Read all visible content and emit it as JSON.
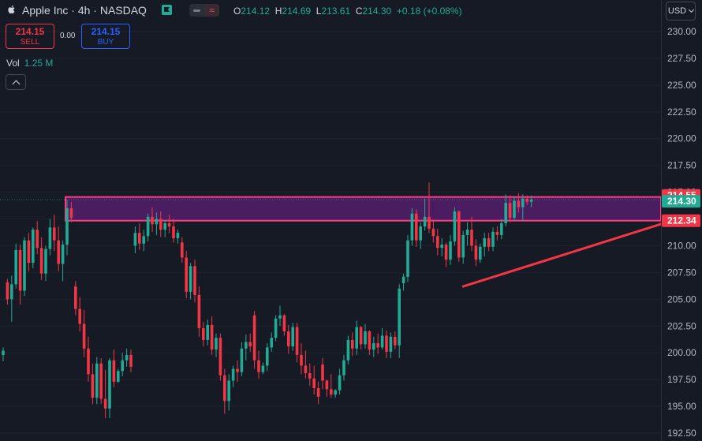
{
  "header": {
    "symbol": "Apple Inc · 4h · NASDAQ",
    "ohlc": {
      "o_label": "O",
      "o": "214.12",
      "h_label": "H",
      "h": "214.69",
      "l_label": "L",
      "l": "213.61",
      "c_label": "C",
      "c": "214.30",
      "change": "+0.18 (+0.08%)"
    },
    "sell_price": "214.15",
    "sell_label": "SELL",
    "buy_price": "214.15",
    "buy_label": "BUY",
    "spread": "0.00",
    "vol_label": "Vol",
    "vol_value": "1.25 M",
    "currency": "USD"
  },
  "colors": {
    "background": "#161a25",
    "up": "#22ab94",
    "down": "#f23645",
    "zone_fill": "#5c1f75",
    "zone_border": "#ff3a7f",
    "trendline": "#f23645"
  },
  "chart_data": {
    "type": "candlestick",
    "ylim": [
      192.5,
      231.0
    ],
    "yticks": [
      "230.00",
      "227.50",
      "225.00",
      "222.50",
      "220.00",
      "217.50",
      "215.00",
      "212.50",
      "210.00",
      "207.50",
      "205.00",
      "202.50",
      "200.00",
      "197.50",
      "195.00",
      "192.50"
    ],
    "price_labels": [
      {
        "value": 214.55,
        "text": "214.55",
        "color": "#f23645"
      },
      {
        "value": 214.3,
        "text": "214.30",
        "color": "#22ab94"
      },
      {
        "value": 212.34,
        "text": "212.34",
        "color": "#f23645"
      }
    ],
    "zone": {
      "top": 214.55,
      "bottom": 212.34,
      "x_start_index": 15
    },
    "trendline": {
      "from": {
        "index": 108,
        "value": 206.2
      },
      "to": {
        "index": 157,
        "value": 212.34
      }
    },
    "candles": [
      [
        199.8,
        200.5,
        199.2,
        200.2
      ],
      [
        206.6,
        206.9,
        204.5,
        205.0
      ],
      [
        205.0,
        207.2,
        202.9,
        206.4
      ],
      [
        206.4,
        210.2,
        206.0,
        209.6
      ],
      [
        209.6,
        210.1,
        204.5,
        205.8
      ],
      [
        205.8,
        210.8,
        205.3,
        210.5
      ],
      [
        210.5,
        211.2,
        207.6,
        208.4
      ],
      [
        208.4,
        211.7,
        207.9,
        211.5
      ],
      [
        211.5,
        212.3,
        209.2,
        209.8
      ],
      [
        209.8,
        210.8,
        206.8,
        207.4
      ],
      [
        207.4,
        210.0,
        206.7,
        209.7
      ],
      [
        209.7,
        212.5,
        209.1,
        211.7
      ],
      [
        211.7,
        212.9,
        209.5,
        210.5
      ],
      [
        210.5,
        211.8,
        207.6,
        208.3
      ],
      [
        208.3,
        210.5,
        206.7,
        210.1
      ],
      [
        210.1,
        214.3,
        209.1,
        213.5
      ],
      [
        213.5,
        214.1,
        212.2,
        212.6
      ],
      [
        206.2,
        206.7,
        203.5,
        204.1
      ],
      [
        204.1,
        205.2,
        202.0,
        202.7
      ],
      [
        202.7,
        204.0,
        199.6,
        200.4
      ],
      [
        200.4,
        201.5,
        197.3,
        198.0
      ],
      [
        198.0,
        199.0,
        195.2,
        195.8
      ],
      [
        195.8,
        199.6,
        195.2,
        199.0
      ],
      [
        199.0,
        199.5,
        195.2,
        195.7
      ],
      [
        195.7,
        198.4,
        193.9,
        194.8
      ],
      [
        194.8,
        199.5,
        193.9,
        199.3
      ],
      [
        199.3,
        200.3,
        196.8,
        197.3
      ],
      [
        197.3,
        198.5,
        197.2,
        198.3
      ],
      [
        198.3,
        200.0,
        197.8,
        199.3
      ],
      [
        199.3,
        200.4,
        198.7,
        199.8
      ],
      [
        199.8,
        200.3,
        198.2,
        198.7
      ],
      [
        210.0,
        211.8,
        209.3,
        211.2
      ],
      [
        211.2,
        212.1,
        209.6,
        210.2
      ],
      [
        210.2,
        211.5,
        209.5,
        210.9
      ],
      [
        210.9,
        213.0,
        210.4,
        212.7
      ],
      [
        212.7,
        213.6,
        211.3,
        212.0
      ],
      [
        212.0,
        213.1,
        211.0,
        212.5
      ],
      [
        212.5,
        213.2,
        210.8,
        211.5
      ],
      [
        211.5,
        212.4,
        210.8,
        212.1
      ],
      [
        212.1,
        212.9,
        211.2,
        211.8
      ],
      [
        211.8,
        212.5,
        210.3,
        210.7
      ],
      [
        210.7,
        211.5,
        210.2,
        211.2
      ],
      [
        210.3,
        210.8,
        208.4,
        208.9
      ],
      [
        208.9,
        209.5,
        205.1,
        205.7
      ],
      [
        205.7,
        208.4,
        205.0,
        208.1
      ],
      [
        208.1,
        208.7,
        204.7,
        205.4
      ],
      [
        205.4,
        206.2,
        201.5,
        202.3
      ],
      [
        202.3,
        202.9,
        200.6,
        201.2
      ],
      [
        201.2,
        203.1,
        200.7,
        202.6
      ],
      [
        202.6,
        203.4,
        199.8,
        200.3
      ],
      [
        200.3,
        201.8,
        199.6,
        201.4
      ],
      [
        201.4,
        201.8,
        197.4,
        197.9
      ],
      [
        197.9,
        198.5,
        194.3,
        195.5
      ],
      [
        195.5,
        198.0,
        194.6,
        197.4
      ],
      [
        197.4,
        198.8,
        196.8,
        198.5
      ],
      [
        198.5,
        199.3,
        197.3,
        198.2
      ],
      [
        198.2,
        201.0,
        197.8,
        200.4
      ],
      [
        200.4,
        201.7,
        199.3,
        201.0
      ],
      [
        201.0,
        201.8,
        200.1,
        200.6
      ],
      [
        203.5,
        203.9,
        198.5,
        199.3
      ],
      [
        199.3,
        200.2,
        197.6,
        198.2
      ],
      [
        198.2,
        199.1,
        198.0,
        198.8
      ],
      [
        198.8,
        200.9,
        198.3,
        200.5
      ],
      [
        200.5,
        201.9,
        200.1,
        201.4
      ],
      [
        201.4,
        203.5,
        201.1,
        203.2
      ],
      [
        203.2,
        204.4,
        202.5,
        203.5
      ],
      [
        203.5,
        203.6,
        201.6,
        202.0
      ],
      [
        202.0,
        202.6,
        199.9,
        200.6
      ],
      [
        200.6,
        202.8,
        200.2,
        202.4
      ],
      [
        202.4,
        202.8,
        199.1,
        199.8
      ],
      [
        199.8,
        200.9,
        198.0,
        198.8
      ],
      [
        198.8,
        200.2,
        197.6,
        198.1
      ],
      [
        198.1,
        199.0,
        196.9,
        197.6
      ],
      [
        197.6,
        198.8,
        196.1,
        196.7
      ],
      [
        196.7,
        197.3,
        195.2,
        195.9
      ],
      [
        198.9,
        199.5,
        196.6,
        197.4
      ],
      [
        197.4,
        197.5,
        195.9,
        196.6
      ],
      [
        196.6,
        198.0,
        195.8,
        196.1
      ],
      [
        196.1,
        196.6,
        195.8,
        196.5
      ],
      [
        196.5,
        198.5,
        196.1,
        197.9
      ],
      [
        197.9,
        199.8,
        197.4,
        199.3
      ],
      [
        199.3,
        201.6,
        198.9,
        201.2
      ],
      [
        201.2,
        201.9,
        199.7,
        200.4
      ],
      [
        200.4,
        203.0,
        199.8,
        202.4
      ],
      [
        202.4,
        202.5,
        200.3,
        200.8
      ],
      [
        200.8,
        202.7,
        200.4,
        202.0
      ],
      [
        202.0,
        202.1,
        199.8,
        200.3
      ],
      [
        200.3,
        201.5,
        199.6,
        200.9
      ],
      [
        200.9,
        201.8,
        199.9,
        200.5
      ],
      [
        200.5,
        202.3,
        200.3,
        201.6
      ],
      [
        201.6,
        202.1,
        199.5,
        200.1
      ],
      [
        200.1,
        201.9,
        199.5,
        201.5
      ],
      [
        201.5,
        202.0,
        200.3,
        200.7
      ],
      [
        200.7,
        206.4,
        199.5,
        206.0
      ],
      [
        206.5,
        207.4,
        205.8,
        207.1
      ],
      [
        207.1,
        211.0,
        206.6,
        210.5
      ],
      [
        210.5,
        213.5,
        210.0,
        213.0
      ],
      [
        213.0,
        213.4,
        209.9,
        210.5
      ],
      [
        210.5,
        212.2,
        209.7,
        211.8
      ],
      [
        211.8,
        214.4,
        211.4,
        212.7
      ],
      [
        212.7,
        215.9,
        211.2,
        211.6
      ],
      [
        211.6,
        212.3,
        210.3,
        210.9
      ],
      [
        210.9,
        211.6,
        209.1,
        209.8
      ],
      [
        209.8,
        210.7,
        209.0,
        210.1
      ],
      [
        210.1,
        210.3,
        208.0,
        208.7
      ],
      [
        208.7,
        211.0,
        208.2,
        210.4
      ],
      [
        210.4,
        213.6,
        210.0,
        213.2
      ],
      [
        213.2,
        213.3,
        208.5,
        208.9
      ],
      [
        208.9,
        211.4,
        208.3,
        211.0
      ],
      [
        211.0,
        212.2,
        210.0,
        211.5
      ],
      [
        211.5,
        212.7,
        209.5,
        210.0
      ],
      [
        210.0,
        210.6,
        208.1,
        208.7
      ],
      [
        208.7,
        210.2,
        208.4,
        209.9
      ],
      [
        209.9,
        211.2,
        209.0,
        210.7
      ],
      [
        210.7,
        211.2,
        209.5,
        209.9
      ],
      [
        209.9,
        211.7,
        209.5,
        211.3
      ],
      [
        211.3,
        211.8,
        210.5,
        211.0
      ],
      [
        211.0,
        212.5,
        210.6,
        212.1
      ],
      [
        212.1,
        214.8,
        211.8,
        214.0
      ],
      [
        214.0,
        214.7,
        212.2,
        212.6
      ],
      [
        212.6,
        214.6,
        212.4,
        214.2
      ],
      [
        214.2,
        214.9,
        213.1,
        213.6
      ],
      [
        213.6,
        214.8,
        212.3,
        214.4
      ],
      [
        214.4,
        214.7,
        213.8,
        214.1
      ],
      [
        214.1,
        214.7,
        213.6,
        214.3
      ]
    ]
  }
}
